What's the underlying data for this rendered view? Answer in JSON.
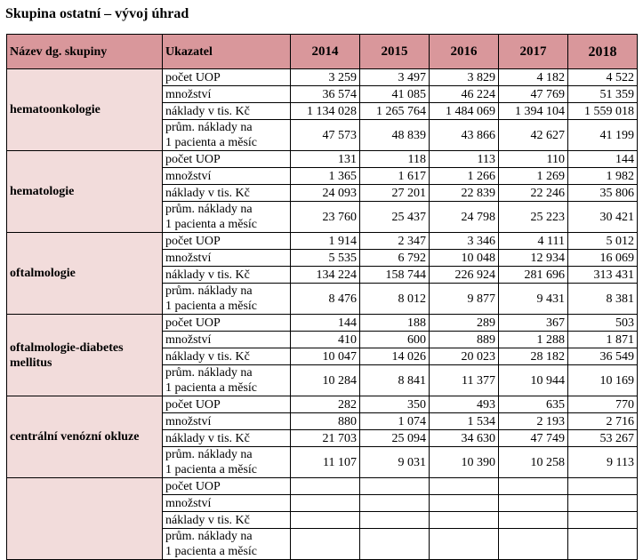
{
  "title": "Skupina ostatní – vývoj úhrad",
  "headers": {
    "name": "Název dg. skupiny",
    "indicator": "Ukazatel",
    "years": [
      "2014",
      "2015",
      "2016",
      "2017",
      "2018"
    ]
  },
  "indicators": {
    "uop": "počet UOP",
    "qty": "množství",
    "cost": "náklady v tis. Kč",
    "avg_line1": "prům. náklady na",
    "avg_line2": "1 pacienta a měsíc"
  },
  "groups": [
    {
      "name": "hematoonkologie",
      "uop": [
        "3 259",
        "3 497",
        "3 829",
        "4 182",
        "4 522"
      ],
      "qty": [
        "36 574",
        "41 085",
        "46 224",
        "47 769",
        "51 359"
      ],
      "cost": [
        "1 134 028",
        "1 265 764",
        "1 484 069",
        "1 394 104",
        "1 559 018"
      ],
      "avg": [
        "47 573",
        "48 839",
        "43 866",
        "42 627",
        "41 199"
      ]
    },
    {
      "name": "hematologie",
      "uop": [
        "131",
        "118",
        "113",
        "110",
        "144"
      ],
      "qty": [
        "1 365",
        "1 617",
        "1 266",
        "1 269",
        "1 982"
      ],
      "cost": [
        "24 093",
        "27 201",
        "22 839",
        "22 246",
        "35 806"
      ],
      "avg": [
        "23 760",
        "25 437",
        "24 798",
        "25 223",
        "30 421"
      ]
    },
    {
      "name": "oftalmologie",
      "uop": [
        "1 914",
        "2 347",
        "3 346",
        "4 111",
        "5 012"
      ],
      "qty": [
        "5 535",
        "6 792",
        "10 048",
        "12 934",
        "16 069"
      ],
      "cost": [
        "134 224",
        "158 744",
        "226 924",
        "281 696",
        "313 431"
      ],
      "avg": [
        "8 476",
        "8 012",
        "9 877",
        "9 431",
        "8 381"
      ]
    },
    {
      "name": "oftalmologie-diabetes mellitus",
      "uop": [
        "144",
        "188",
        "289",
        "367",
        "503"
      ],
      "qty": [
        "410",
        "600",
        "889",
        "1 288",
        "1 871"
      ],
      "cost": [
        "10 047",
        "14 026",
        "20 023",
        "28 182",
        "36 549"
      ],
      "avg": [
        "10 284",
        "8 841",
        "11 377",
        "10 944",
        "10 169"
      ]
    },
    {
      "name": "centrální venózní okluze",
      "uop": [
        "282",
        "350",
        "493",
        "635",
        "770"
      ],
      "qty": [
        "880",
        "1 074",
        "1 534",
        "2 193",
        "2 716"
      ],
      "cost": [
        "21 703",
        "25 094",
        "34 630",
        "47 749",
        "53 267"
      ],
      "avg": [
        "11 107",
        "9 031",
        "10 390",
        "10 258",
        "9 113"
      ]
    },
    {
      "name": "",
      "uop": [
        "",
        "",
        "",
        "",
        ""
      ],
      "qty": [
        "",
        "",
        "",
        "",
        ""
      ],
      "cost": [
        "",
        "",
        "",
        "",
        ""
      ],
      "avg": [
        "",
        "",
        "",
        "",
        ""
      ]
    }
  ]
}
